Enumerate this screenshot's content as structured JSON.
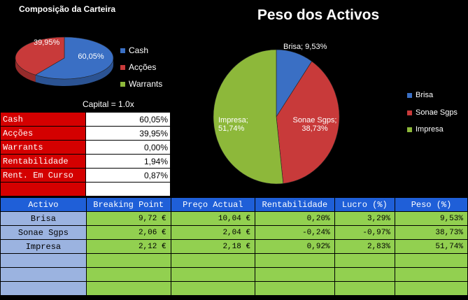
{
  "left_chart": {
    "title": "Composição da Carteira",
    "legend": [
      "Cash",
      "Acções",
      "Warrants"
    ],
    "colors": {
      "Cash": "#3a6fc4",
      "Acções": "#c83a3a",
      "Warrants": "#8db83a"
    }
  },
  "main_chart": {
    "title": "Peso  dos Activos",
    "legend": [
      "Brisa",
      "Sonae Sgps",
      "Impresa"
    ],
    "colors": {
      "Brisa": "#3a6fc4",
      "Sonae Sgps": "#c83a3a",
      "Impresa": "#8db83a"
    }
  },
  "chart_data": [
    {
      "type": "pie",
      "title": "Composição da Carteira",
      "labels": [
        "Cash",
        "Acções",
        "Warrants"
      ],
      "values": [
        60.05,
        39.95,
        0.0
      ],
      "data_labels": [
        "60,05%",
        "39,95%",
        ""
      ]
    },
    {
      "type": "pie",
      "title": "Peso  dos Activos",
      "labels": [
        "Brisa",
        "Sonae Sgps",
        "Impresa"
      ],
      "values": [
        9.53,
        38.73,
        51.74
      ],
      "data_labels": [
        "Brisa; 9,53%",
        "Sonae Sgps; 38,73%",
        "Impresa; 51,74%"
      ]
    }
  ],
  "capital": "Capital = 1.0x",
  "summary": [
    {
      "label": "Cash",
      "value": "60,05%"
    },
    {
      "label": "Acções",
      "value": "39,95%"
    },
    {
      "label": "Warrants",
      "value": "0,00%"
    },
    {
      "label": "Rentabilidade",
      "value": "1,94%"
    },
    {
      "label": "Rent. Em Curso",
      "value": "0,87%"
    },
    {
      "label": "",
      "value": ""
    }
  ],
  "table": {
    "headers": [
      "Activo",
      "Breaking Point",
      "Preço Actual",
      "Rentabilidade",
      "Lucro (%)",
      "Peso (%)"
    ],
    "rows": [
      [
        "Brisa",
        "9,72 €",
        "10,04 €",
        "0,20%",
        "3,29%",
        "9,53%"
      ],
      [
        "Sonae Sgps",
        "2,06 €",
        "2,04 €",
        "-0,24%",
        "-0,97%",
        "38,73%"
      ],
      [
        "Impresa",
        "2,12 €",
        "2,18 €",
        "0,92%",
        "2,83%",
        "51,74%"
      ],
      [
        "",
        "",
        "",
        "",
        "",
        ""
      ],
      [
        "",
        "",
        "",
        "",
        "",
        ""
      ],
      [
        "",
        "",
        "",
        "",
        "",
        ""
      ]
    ]
  }
}
